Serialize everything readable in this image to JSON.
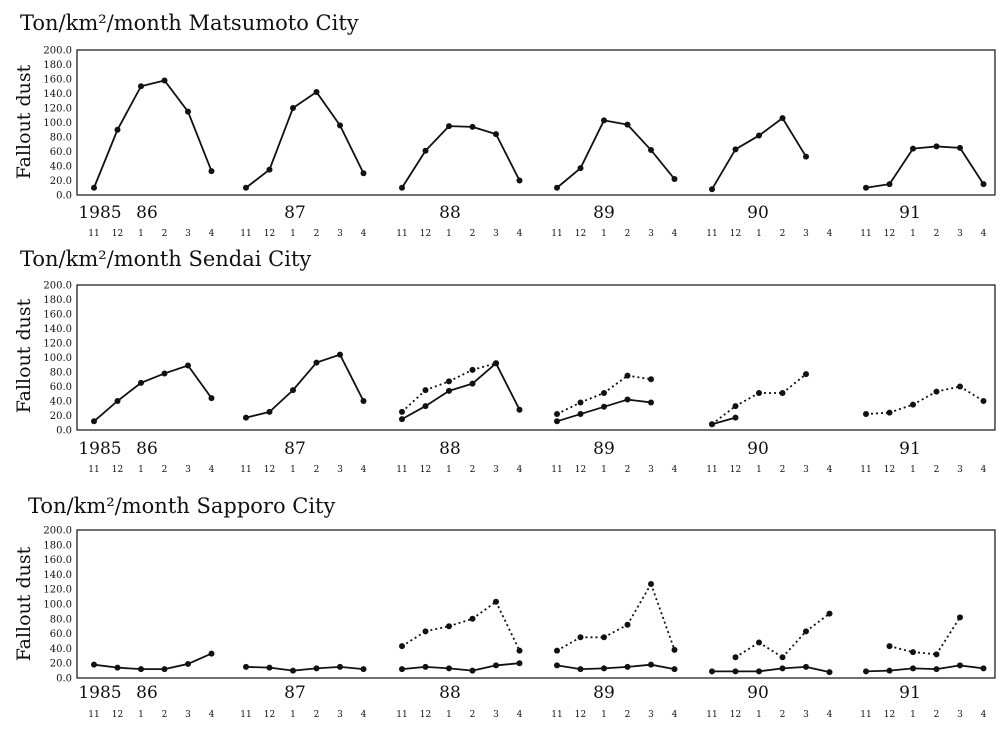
{
  "chart_data": [
    {
      "type": "line",
      "title": "Ton/km²/month Matsumoto City",
      "ylabel": "Fallout dust",
      "ylim": [
        0,
        200
      ],
      "yticks": [
        "200.0",
        "180.0",
        "160.0",
        "140.0",
        "120.0",
        "100.0",
        "80.0",
        "60.0",
        "40.0",
        "20.0",
        "0.0"
      ],
      "year_labels": [
        "1985",
        "86",
        "87",
        "88",
        "89",
        "90",
        "91"
      ],
      "month_labels": [
        "11",
        "12",
        "1",
        "2",
        "3",
        "4"
      ],
      "seasons": [
        "1985-86",
        "1986-87",
        "1987-88",
        "1988-89",
        "1989-90",
        "1990-91"
      ],
      "series": [
        {
          "name": "solid",
          "style": "solid",
          "values": [
            [
              10,
              90,
              150,
              158,
              115,
              33
            ],
            [
              10,
              35,
              120,
              142,
              96,
              30
            ],
            [
              10,
              61,
              95,
              94,
              84,
              20
            ],
            [
              10,
              37,
              103,
              97,
              62,
              22
            ],
            [
              8,
              63,
              82,
              106,
              53,
              null
            ],
            [
              10,
              15,
              64,
              67,
              65,
              15
            ]
          ]
        }
      ]
    },
    {
      "type": "line",
      "title": "Ton/km²/month Sendai City",
      "ylabel": "Fallout dust",
      "ylim": [
        0,
        200
      ],
      "yticks": [
        "200.0",
        "180.0",
        "160.0",
        "140.0",
        "120.0",
        "100.0",
        "80.0",
        "60.0",
        "40.0",
        "20.0",
        "0.0"
      ],
      "year_labels": [
        "1985",
        "86",
        "87",
        "88",
        "89",
        "90",
        "91"
      ],
      "month_labels": [
        "11",
        "12",
        "1",
        "2",
        "3",
        "4"
      ],
      "seasons": [
        "1985-86",
        "1986-87",
        "1987-88",
        "1988-89",
        "1989-90",
        "1990-91"
      ],
      "series": [
        {
          "name": "solid",
          "style": "solid",
          "values": [
            [
              12,
              40,
              65,
              78,
              89,
              44
            ],
            [
              17,
              25,
              55,
              93,
              104,
              40
            ],
            [
              15,
              33,
              54,
              64,
              92,
              28
            ],
            [
              12,
              22,
              32,
              42,
              38,
              null
            ],
            [
              8,
              17,
              null,
              null,
              null,
              null
            ],
            [
              null,
              null,
              null,
              null,
              null,
              null
            ]
          ]
        },
        {
          "name": "dotted",
          "style": "dotted",
          "values": [
            [
              null,
              null,
              null,
              null,
              null,
              null
            ],
            [
              null,
              null,
              null,
              null,
              null,
              null
            ],
            [
              25,
              55,
              67,
              83,
              92,
              null
            ],
            [
              22,
              38,
              51,
              75,
              70,
              null
            ],
            [
              8,
              33,
              51,
              51,
              77,
              null
            ],
            [
              22,
              24,
              35,
              53,
              60,
              40
            ]
          ]
        }
      ]
    },
    {
      "type": "line",
      "title": "Ton/km²/month Sapporo City",
      "ylabel": "Fallout dust",
      "ylim": [
        0,
        200
      ],
      "yticks": [
        "200.0",
        "180.0",
        "160.0",
        "140.0",
        "120.0",
        "100.0",
        "80.0",
        "60.0",
        "40.0",
        "20.0",
        "0.0"
      ],
      "year_labels": [
        "1985",
        "86",
        "87",
        "88",
        "89",
        "90",
        "91"
      ],
      "month_labels": [
        "11",
        "12",
        "1",
        "2",
        "3",
        "4"
      ],
      "seasons": [
        "1985-86",
        "1986-87",
        "1987-88",
        "1988-89",
        "1989-90",
        "1990-91"
      ],
      "series": [
        {
          "name": "solid",
          "style": "solid",
          "values": [
            [
              18,
              14,
              12,
              12,
              19,
              33
            ],
            [
              15,
              14,
              10,
              13,
              15,
              12
            ],
            [
              12,
              15,
              13,
              10,
              17,
              20
            ],
            [
              17,
              12,
              13,
              15,
              18,
              12
            ],
            [
              9,
              9,
              9,
              13,
              15,
              8
            ],
            [
              9,
              10,
              13,
              12,
              17,
              13
            ]
          ]
        },
        {
          "name": "dotted",
          "style": "dotted",
          "values": [
            [
              null,
              null,
              null,
              null,
              null,
              null
            ],
            [
              null,
              null,
              null,
              null,
              null,
              null
            ],
            [
              43,
              63,
              70,
              80,
              103,
              37
            ],
            [
              37,
              55,
              55,
              72,
              127,
              38
            ],
            [
              null,
              28,
              48,
              28,
              63,
              87
            ],
            [
              null,
              43,
              35,
              32,
              82,
              null
            ]
          ]
        }
      ]
    }
  ]
}
